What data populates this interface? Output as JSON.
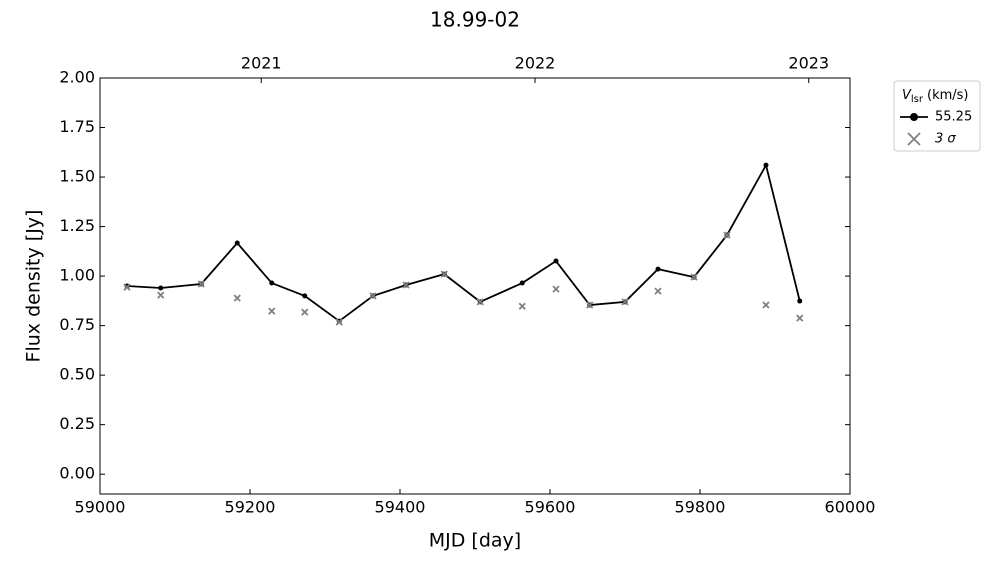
{
  "chart_data": {
    "type": "line",
    "title": "18.99-02",
    "xlabel": "MJD [day]",
    "ylabel": "Flux density [Jy]",
    "xlim": [
      59000,
      60000
    ],
    "ylim": [
      -0.1,
      2.0
    ],
    "xticks": [
      59000,
      59200,
      59400,
      59600,
      59800,
      60000
    ],
    "yticks": [
      {
        "value": 0,
        "label": "0.00"
      },
      {
        "value": 0.25,
        "label": "0.25"
      },
      {
        "value": 0.5,
        "label": "0.50"
      },
      {
        "value": 0.75,
        "label": "0.75"
      },
      {
        "value": 1,
        "label": "1.00"
      },
      {
        "value": 1.25,
        "label": "1.25"
      },
      {
        "value": 1.5,
        "label": "1.50"
      },
      {
        "value": 1.75,
        "label": "1.75"
      },
      {
        "value": 2,
        "label": "2.00"
      }
    ],
    "x2ticks": [
      {
        "value": 59215,
        "label": "2021"
      },
      {
        "value": 59580,
        "label": "2022"
      },
      {
        "value": 59945,
        "label": "2023"
      }
    ],
    "legend_title": {
      "symbol": "V",
      "subscript": "lsr",
      "unit": "(km/s)"
    },
    "legend_position": "outside upper right",
    "x": [
      59036,
      59081,
      59135,
      59183,
      59229,
      59273,
      59319,
      59364,
      59408,
      59459,
      59507,
      59563,
      59608,
      59653,
      59700,
      59744,
      59792,
      59836,
      59888,
      59933
    ],
    "series": [
      {
        "name": "55.25",
        "color": "#000000",
        "marker": "circle",
        "values": [
          0.95,
          0.94,
          0.96,
          1.167,
          0.965,
          0.9,
          0.773,
          0.9,
          0.955,
          1.01,
          0.87,
          0.965,
          1.076,
          0.854,
          0.87,
          1.035,
          0.995,
          1.207,
          1.56,
          0.874
        ]
      },
      {
        "name": "3 σ",
        "color": "#808080",
        "marker": "x",
        "values": [
          0.944,
          0.904,
          0.96,
          0.889,
          0.823,
          0.818,
          0.768,
          0.9,
          0.955,
          1.01,
          0.87,
          0.848,
          0.934,
          0.854,
          0.87,
          0.924,
          0.995,
          1.207,
          0.854,
          0.788
        ]
      }
    ]
  }
}
